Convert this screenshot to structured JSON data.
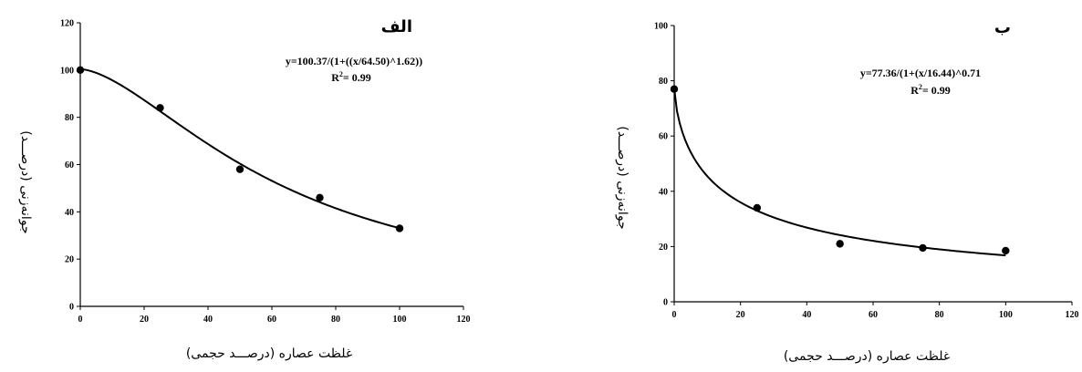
{
  "chart_data": [
    {
      "type": "scatter",
      "panel_label": "الف",
      "equation": "y=100.37/(1+((x/64.50)^1.62))",
      "r2_label": "R",
      "r2_sup": "2",
      "r2_value": "= 0.99",
      "xlabel": "غلظت عصاره (درصـــد حجمی)",
      "ylabel": "جوانه‌زنی (درصـــد)",
      "xlim": [
        0,
        120
      ],
      "ylim": [
        0,
        120
      ],
      "xticks": [
        0,
        20,
        40,
        60,
        80,
        100,
        120
      ],
      "yticks": [
        0,
        20,
        40,
        60,
        80,
        100,
        120
      ],
      "points": {
        "x": [
          0,
          25,
          50,
          75,
          100
        ],
        "y": [
          100,
          84,
          58,
          46,
          33
        ]
      },
      "fit": {
        "a": 100.37,
        "x0": 64.5,
        "b": 1.62,
        "x_range": [
          0,
          100
        ]
      },
      "grid": false,
      "legend": "none"
    },
    {
      "type": "scatter",
      "panel_label": "ب",
      "equation": "y=77.36/(1+(x/16.44)^0.71",
      "r2_label": "R",
      "r2_sup": "2",
      "r2_value": "= 0.99",
      "xlabel": "غلظت عصاره (درصـــد حجمی)",
      "ylabel": "جوانه‌زنی (درصـــد)",
      "xlim": [
        0,
        120
      ],
      "ylim": [
        0,
        100
      ],
      "xticks": [
        0,
        20,
        40,
        60,
        80,
        100,
        120
      ],
      "yticks": [
        0,
        20,
        40,
        60,
        80,
        100
      ],
      "points": {
        "x": [
          0,
          25,
          50,
          75,
          100
        ],
        "y": [
          77,
          34,
          21,
          19.5,
          18.5
        ]
      },
      "fit": {
        "a": 77.36,
        "x0": 16.44,
        "b": 0.71,
        "x_range": [
          0,
          100
        ]
      },
      "grid": false,
      "legend": "none"
    }
  ]
}
